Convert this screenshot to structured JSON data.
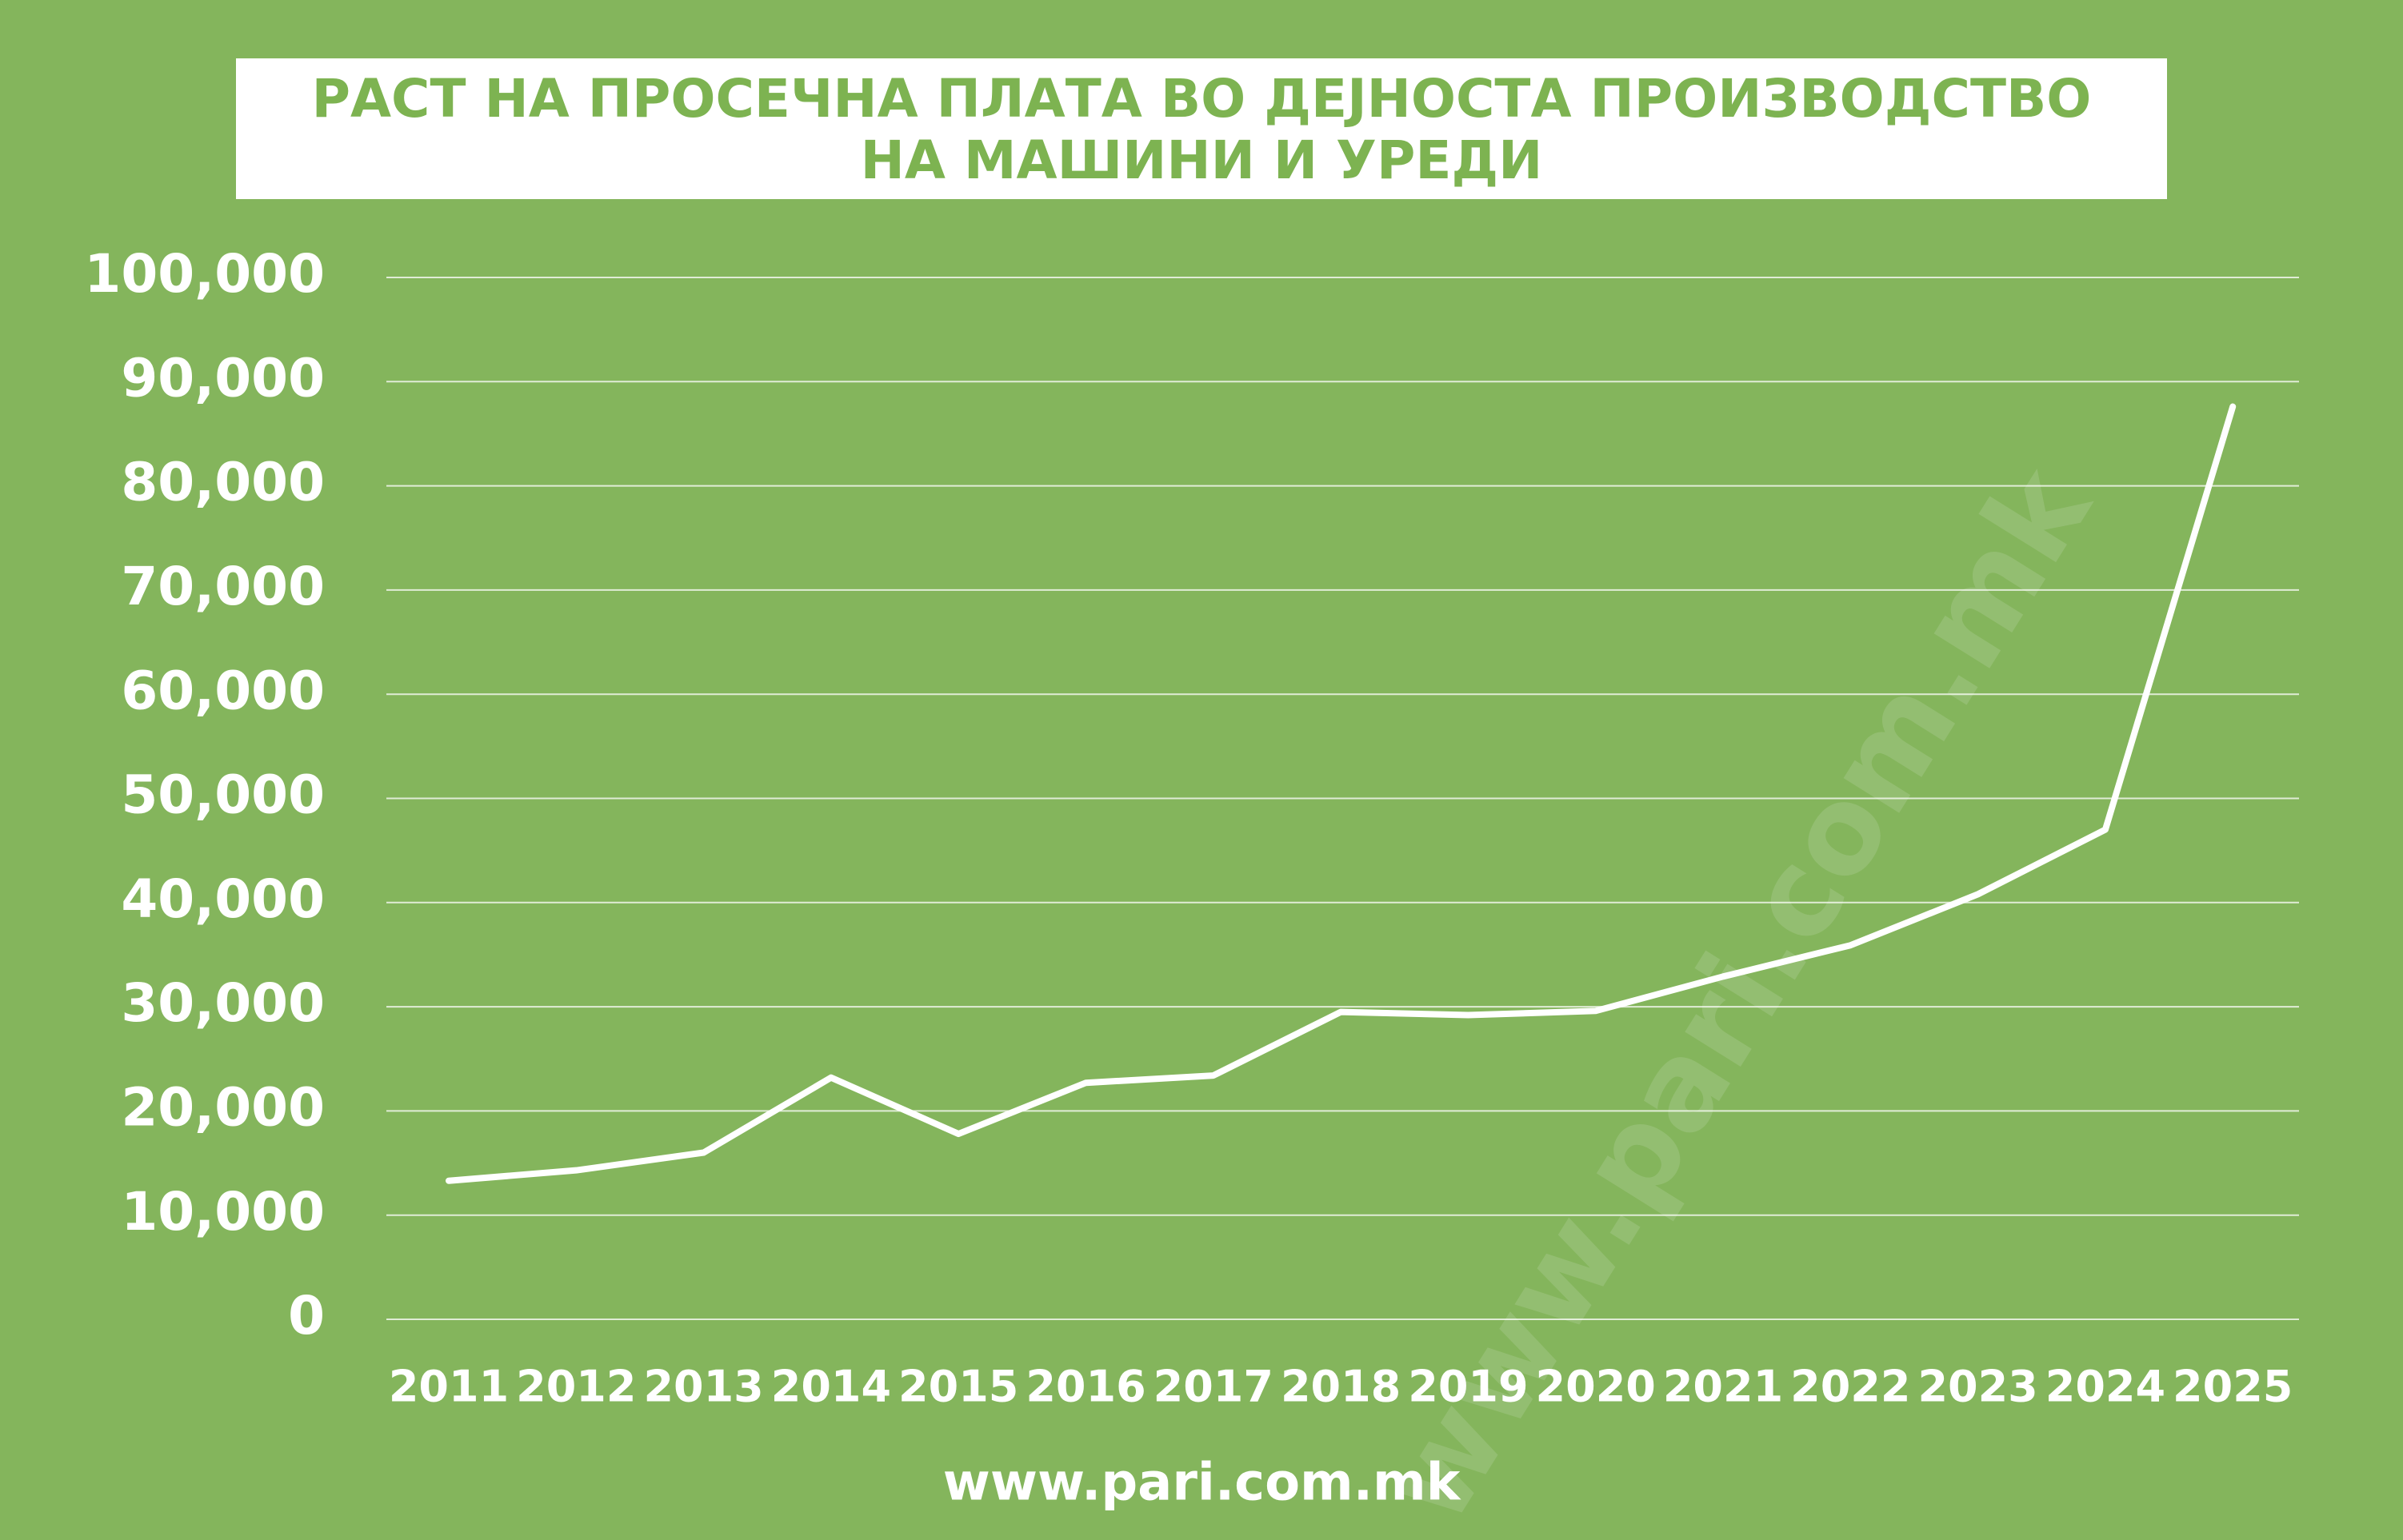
{
  "chart_data": {
    "type": "line",
    "title": [
      "РАСТ НА ПРОСЕЧНА ПЛАТА ВО ДЕЈНОСТА ПРОИЗВОДСТВО",
      "НА МАШИНИ И УРЕДИ"
    ],
    "categories": [
      "2011",
      "2012",
      "2013",
      "2014",
      "2015",
      "2016",
      "2017",
      "2018",
      "2019",
      "2020",
      "2021",
      "2022",
      "2023",
      "2024",
      "2025"
    ],
    "series": [
      {
        "name": "Просечна плата",
        "color": "#ffffff",
        "values": [
          13300,
          14300,
          16000,
          23200,
          17800,
          22700,
          23400,
          29500,
          29200,
          29600,
          32900,
          35900,
          40800,
          47000,
          87600
        ]
      }
    ],
    "ylim": [
      0,
      100000
    ],
    "yticks": [
      0,
      {
        "value": 10000,
        "label": "10,000"
      },
      {
        "value": 20000,
        "label": "20,000"
      },
      {
        "value": 30000,
        "label": "30,000"
      },
      {
        "value": 40000,
        "label": "40,000"
      },
      {
        "value": 50000,
        "label": "50,000"
      },
      {
        "value": 60000,
        "label": "60,000"
      },
      {
        "value": 70000,
        "label": "70,000"
      },
      {
        "value": 80000,
        "label": "80,000"
      },
      {
        "value": 90000,
        "label": "90,000"
      },
      {
        "value": 100000,
        "label": "100,000"
      }
    ],
    "grid": true,
    "source": "www.pari.com.mk",
    "watermark": "www.pari.com.mk"
  }
}
